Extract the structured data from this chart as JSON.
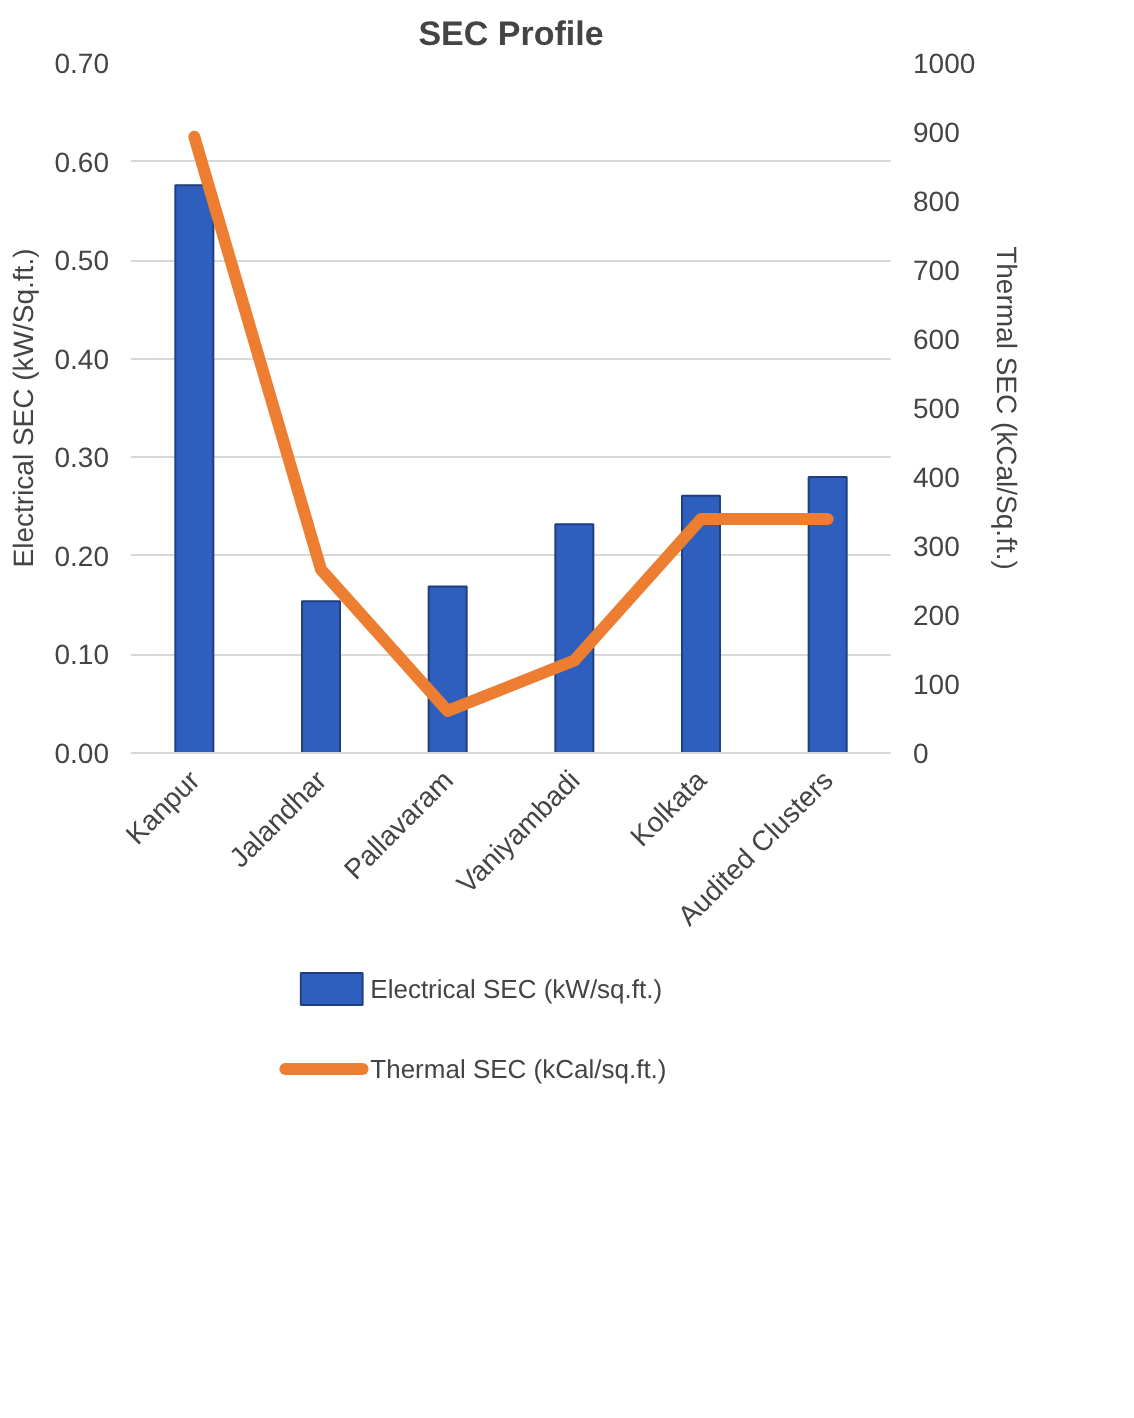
{
  "chart_data": {
    "type": "bar",
    "title": "SEC Profile",
    "categories": [
      "Kanpur",
      "Jalandhar",
      "Pallavaram",
      "Vaniyambadi",
      "Kolkata",
      "Audited Clusters"
    ],
    "ylabel": "Electrical SEC (kW/Sq.ft.)",
    "y2label": "Thermal SEC (kCal/Sq.ft.)",
    "series": [
      {
        "name": "Electrical SEC (kW/sq.ft.)",
        "color": "#2e5fbf",
        "values": [
          0.576,
          0.154,
          0.169,
          0.232,
          0.261,
          0.28
        ]
      },
      {
        "name": "Thermal SEC (kCal/sq.ft.)",
        "type": "line",
        "axis": "y2",
        "color": "#ed7d31",
        "values": [
          893,
          266,
          61,
          134,
          339,
          339
        ]
      }
    ],
    "ylim": [
      0,
      0.7
    ],
    "yticks": [
      {
        "value": 0,
        "label": "0.00"
      },
      {
        "value": 0.1,
        "label": "0.10"
      },
      {
        "value": 0.2,
        "label": "0.20"
      },
      {
        "value": 0.3,
        "label": "0.30"
      },
      {
        "value": 0.4,
        "label": "0.40"
      },
      {
        "value": 0.5,
        "label": "0.50"
      },
      {
        "value": 0.6,
        "label": "0.60"
      },
      {
        "value": 0.7,
        "label": "0.70"
      }
    ],
    "y2lim": [
      0,
      1000
    ],
    "y2ticks": [
      0,
      100,
      200,
      300,
      400,
      500,
      600,
      700,
      800,
      900,
      1000
    ],
    "grid": "y",
    "legend": "bottom"
  }
}
